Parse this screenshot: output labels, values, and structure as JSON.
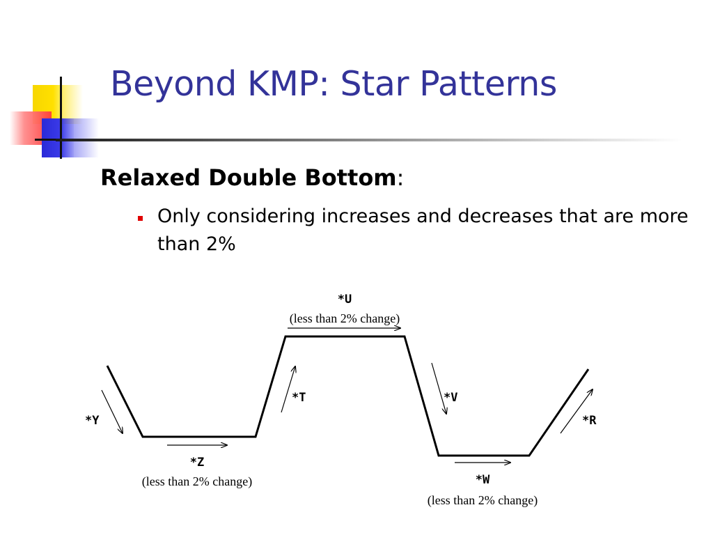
{
  "slide": {
    "title": "Beyond KMP: Star Patterns",
    "heading_bold": "Relaxed Double Bottom",
    "heading_colon": ":",
    "bullet": "Only considering increases and decreases that are more than 2%"
  },
  "diagram": {
    "labels": {
      "y": "*Y",
      "z": "*Z",
      "z_note": "(less than 2% change)",
      "t": "*T",
      "u": "*U",
      "u_note": "(less than 2% change)",
      "v": "*V",
      "w": "*W",
      "w_note": "(less than 2% change)",
      "r": "*R"
    }
  },
  "colors": {
    "title": "#333399",
    "bullet": "#e00000",
    "logo_yellow": "#ffe000",
    "logo_red": "#ff3b3b",
    "logo_blue": "#2a2ad8"
  }
}
